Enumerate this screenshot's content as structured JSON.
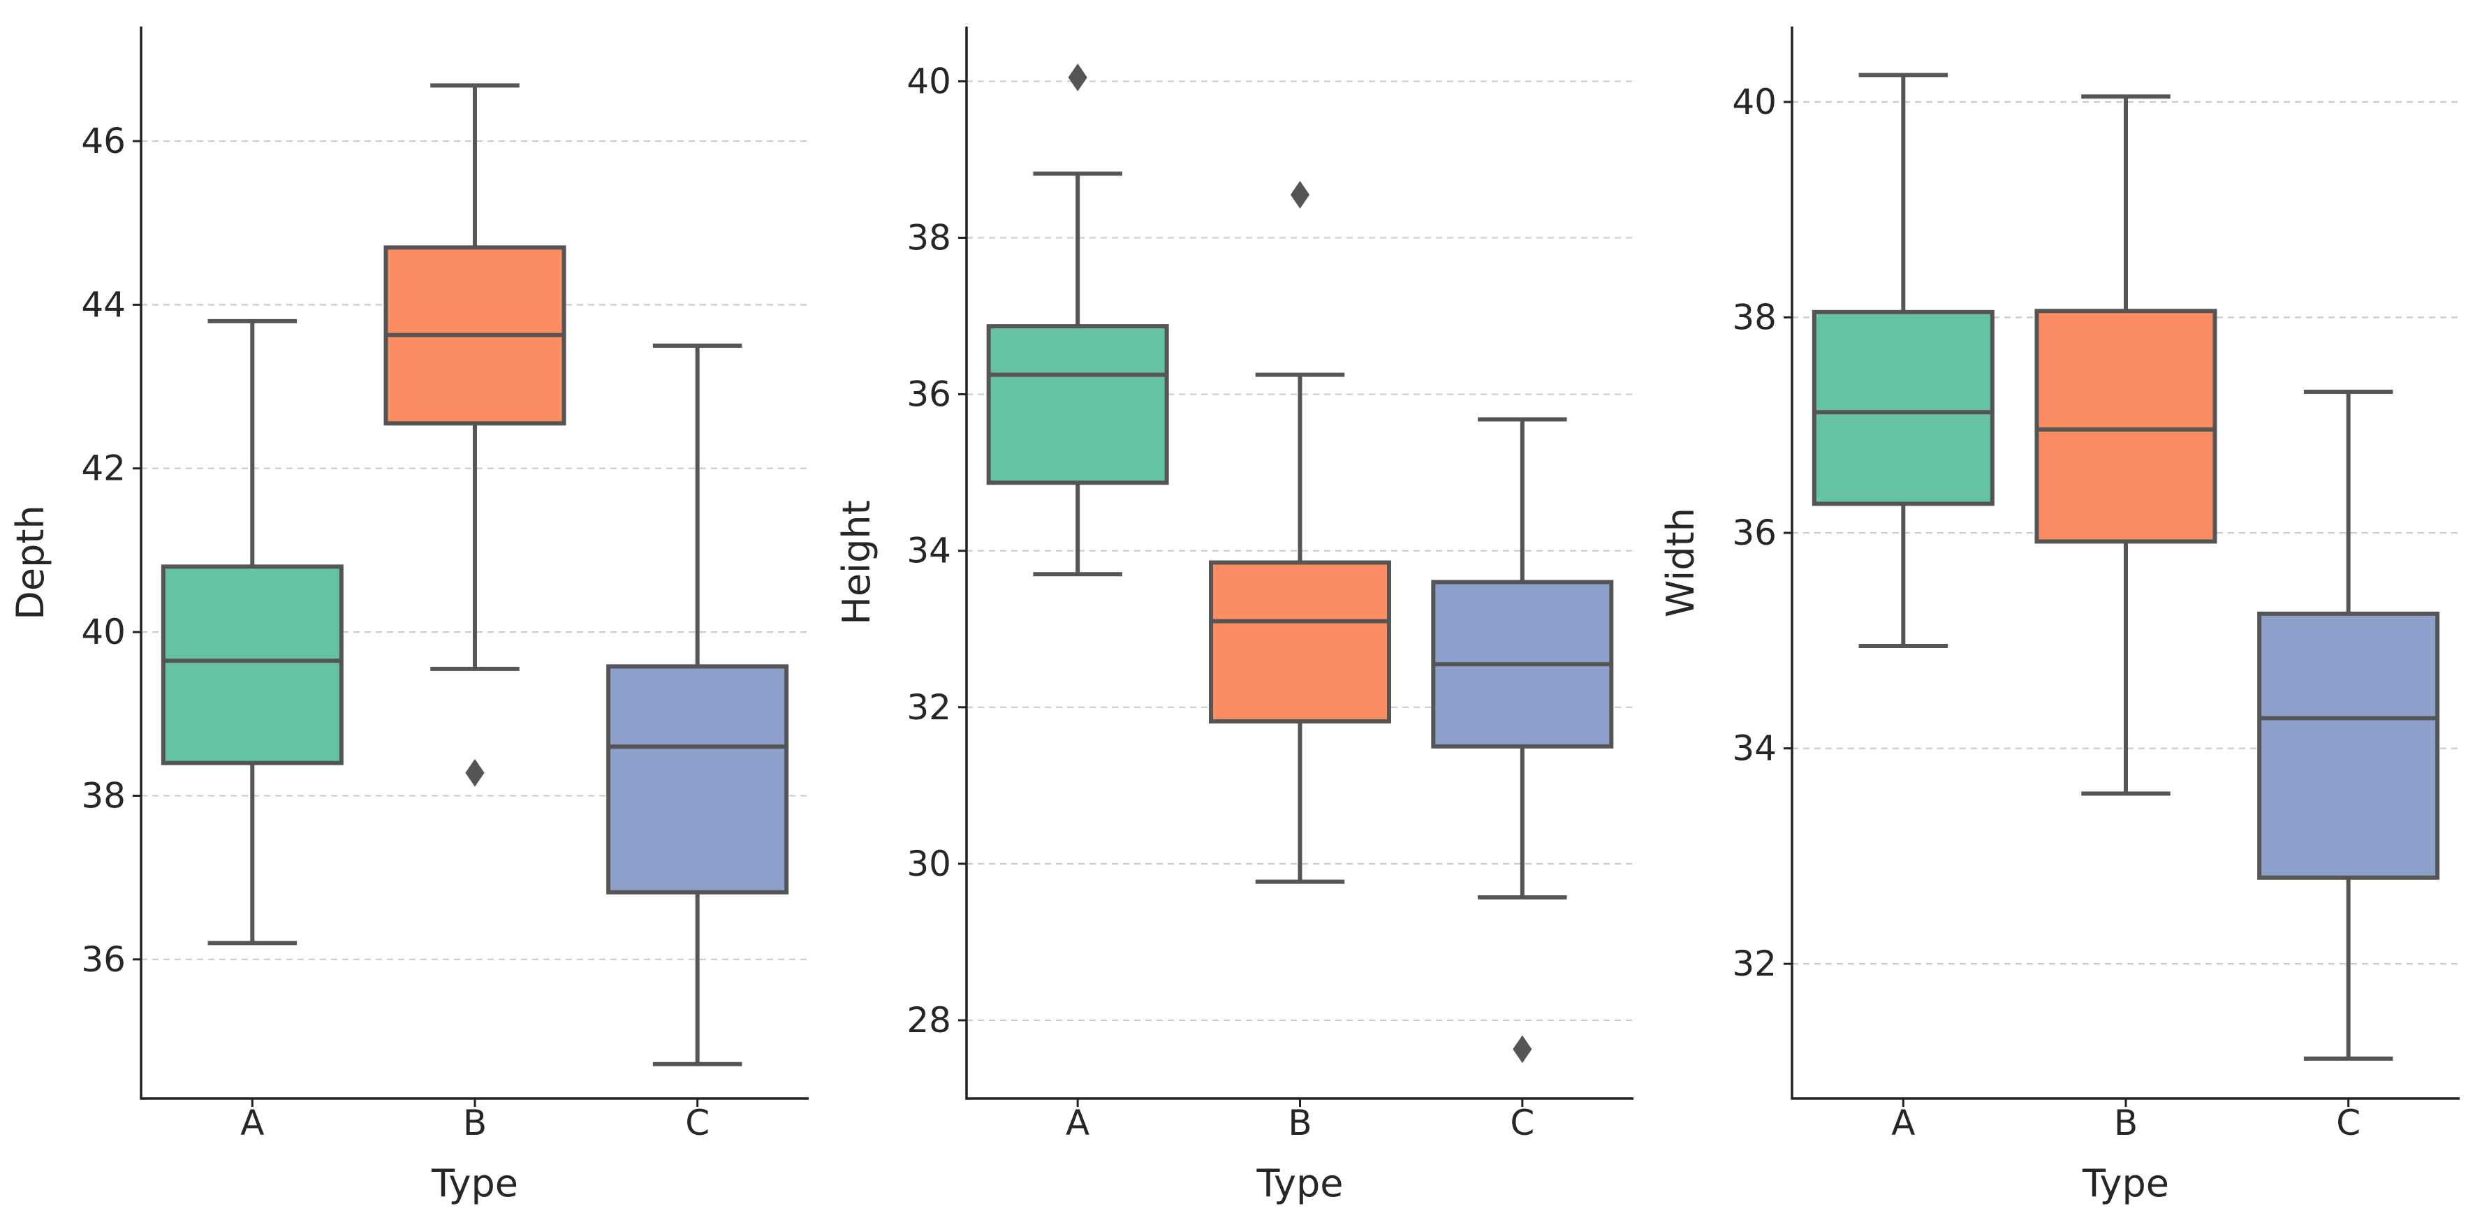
{
  "chart_data": [
    {
      "type": "box",
      "xlabel": "Type",
      "ylabel": "Depth",
      "categories": [
        "A",
        "B",
        "C"
      ],
      "ylim": [
        34.3,
        47.4
      ],
      "yticks": [
        36,
        38,
        40,
        42,
        44,
        46
      ],
      "grid": "horizontal-dashed",
      "colors": [
        "#66c2a5",
        "#fc8d62",
        "#8da0cb"
      ],
      "boxes": [
        {
          "category": "A",
          "whisker_low": 36.2,
          "q1": 38.4,
          "median": 39.65,
          "q3": 40.8,
          "whisker_high": 43.8,
          "outliers": []
        },
        {
          "category": "B",
          "whisker_low": 39.55,
          "q1": 42.55,
          "median": 43.63,
          "q3": 44.7,
          "whisker_high": 46.68,
          "outliers": [
            38.28
          ]
        },
        {
          "category": "C",
          "whisker_low": 34.72,
          "q1": 36.82,
          "median": 38.6,
          "q3": 39.58,
          "whisker_high": 43.5,
          "outliers": []
        }
      ]
    },
    {
      "type": "box",
      "xlabel": "Type",
      "ylabel": "Height",
      "categories": [
        "A",
        "B",
        "C"
      ],
      "ylim": [
        27.0,
        40.7
      ],
      "yticks": [
        28,
        30,
        32,
        34,
        36,
        38,
        40
      ],
      "grid": "horizontal-dashed",
      "colors": [
        "#66c2a5",
        "#fc8d62",
        "#8da0cb"
      ],
      "boxes": [
        {
          "category": "A",
          "whisker_low": 33.7,
          "q1": 34.87,
          "median": 36.25,
          "q3": 36.87,
          "whisker_high": 38.82,
          "outliers": [
            40.05
          ]
        },
        {
          "category": "B",
          "whisker_low": 29.77,
          "q1": 31.82,
          "median": 33.1,
          "q3": 33.85,
          "whisker_high": 36.25,
          "outliers": [
            38.55
          ]
        },
        {
          "category": "C",
          "whisker_low": 29.57,
          "q1": 31.5,
          "median": 32.55,
          "q3": 33.6,
          "whisker_high": 35.68,
          "outliers": [
            27.63
          ]
        }
      ]
    },
    {
      "type": "box",
      "xlabel": "Type",
      "ylabel": "Width",
      "categories": [
        "A",
        "B",
        "C"
      ],
      "ylim": [
        30.75,
        40.7
      ],
      "yticks": [
        32,
        34,
        36,
        38,
        40
      ],
      "grid": "horizontal-dashed",
      "colors": [
        "#66c2a5",
        "#fc8d62",
        "#8da0cb"
      ],
      "boxes": [
        {
          "category": "A",
          "whisker_low": 34.95,
          "q1": 36.27,
          "median": 37.12,
          "q3": 38.05,
          "whisker_high": 40.25,
          "outliers": []
        },
        {
          "category": "B",
          "whisker_low": 33.58,
          "q1": 35.92,
          "median": 36.96,
          "q3": 38.06,
          "whisker_high": 40.05,
          "outliers": []
        },
        {
          "category": "C",
          "whisker_low": 31.12,
          "q1": 32.8,
          "median": 34.28,
          "q3": 35.25,
          "whisker_high": 37.31,
          "outliers": []
        }
      ]
    }
  ]
}
